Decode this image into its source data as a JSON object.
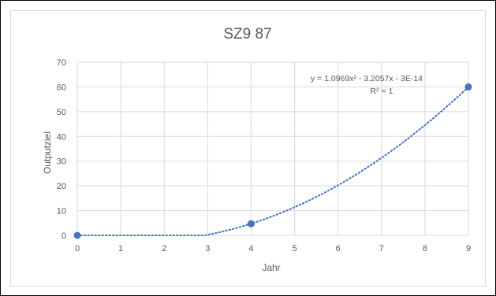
{
  "chart_data": {
    "type": "scatter",
    "title": "SZ9 87",
    "xlabel": "Jahr",
    "ylabel": "Outputziel",
    "xlim": [
      0,
      9
    ],
    "ylim": [
      0,
      70
    ],
    "xticks": [
      "0",
      "1",
      "2",
      "3",
      "4",
      "5",
      "6",
      "7",
      "8",
      "9"
    ],
    "yticks": [
      "0",
      "10",
      "20",
      "30",
      "40",
      "50",
      "60",
      "70"
    ],
    "grid": true,
    "legend": "none",
    "series": [
      {
        "points": [
          {
            "x": 0,
            "y": 0
          },
          {
            "x": 4,
            "y": 4.7
          },
          {
            "x": 9,
            "y": 60
          }
        ],
        "color": "#4472c4"
      }
    ],
    "trendline": {
      "kind": "polynomial-2",
      "a": 1.0969,
      "b": -3.2057,
      "c": 0,
      "style": "dotted",
      "color": "#4472c4",
      "equation": "y = 1.0969x² - 3.2057x - 3E-14",
      "r_squared": "R² = 1"
    }
  }
}
